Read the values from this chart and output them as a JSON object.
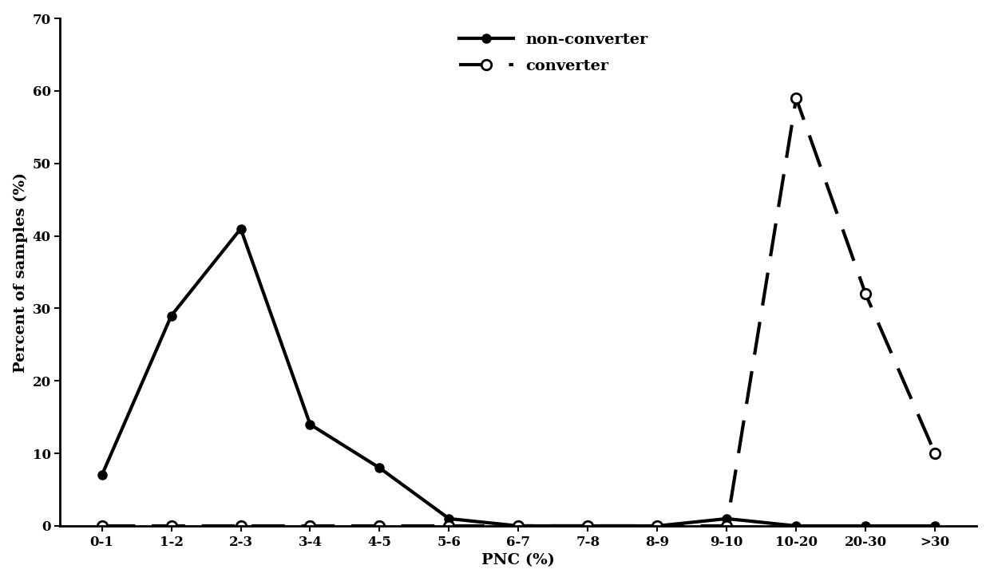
{
  "categories": [
    "0-1",
    "1-2",
    "2-3",
    "3-4",
    "4-5",
    "5-6",
    "6-7",
    "7-8",
    "8-9",
    "9-10",
    "10-20",
    "20-30",
    ">30"
  ],
  "non_converter": [
    7,
    29,
    41,
    14,
    8,
    1,
    0,
    0,
    0,
    1,
    0,
    0,
    0
  ],
  "converter": [
    0,
    0,
    0,
    0,
    0,
    0,
    0,
    0,
    0,
    0,
    59,
    32,
    10
  ],
  "ylabel": "Percent of samples (%)",
  "xlabel": "PNC (%)",
  "ylim": [
    0,
    70
  ],
  "yticks": [
    0,
    10,
    20,
    30,
    40,
    50,
    60,
    70
  ],
  "legend_non_converter": "non-converter",
  "legend_converter": "converter",
  "line_color": "#000000",
  "background_color": "#ffffff",
  "label_fontsize": 14,
  "tick_fontsize": 12,
  "legend_fontsize": 14
}
